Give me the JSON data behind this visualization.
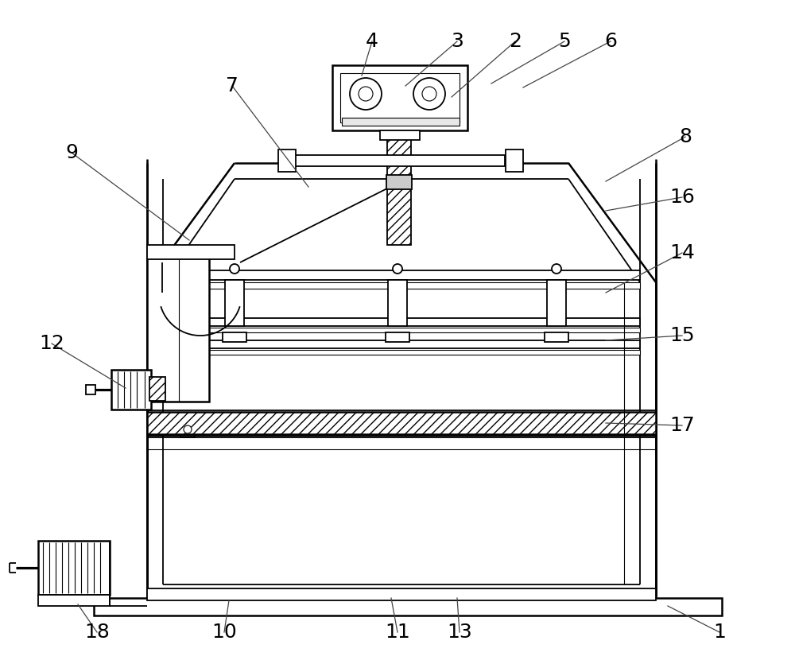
{
  "bg_color": "#ffffff",
  "line_color": "#000000",
  "lw_main": 1.8,
  "lw_med": 1.3,
  "lw_thin": 0.8,
  "font_size": 18,
  "annotations": [
    [
      "1",
      905,
      795,
      840,
      762
    ],
    [
      "2",
      648,
      52,
      568,
      122
    ],
    [
      "3",
      575,
      52,
      510,
      108
    ],
    [
      "4",
      468,
      52,
      455,
      95
    ],
    [
      "5",
      710,
      52,
      618,
      105
    ],
    [
      "6",
      768,
      52,
      658,
      110
    ],
    [
      "7",
      292,
      108,
      388,
      235
    ],
    [
      "8",
      862,
      172,
      762,
      228
    ],
    [
      "9",
      90,
      192,
      238,
      302
    ],
    [
      "10",
      282,
      795,
      288,
      755
    ],
    [
      "11",
      500,
      795,
      492,
      752
    ],
    [
      "12",
      65,
      432,
      158,
      488
    ],
    [
      "13",
      578,
      795,
      575,
      752
    ],
    [
      "14",
      858,
      318,
      762,
      368
    ],
    [
      "15",
      858,
      422,
      762,
      428
    ],
    [
      "16",
      858,
      248,
      762,
      265
    ],
    [
      "17",
      858,
      535,
      762,
      532
    ],
    [
      "18",
      122,
      795,
      98,
      760
    ]
  ]
}
